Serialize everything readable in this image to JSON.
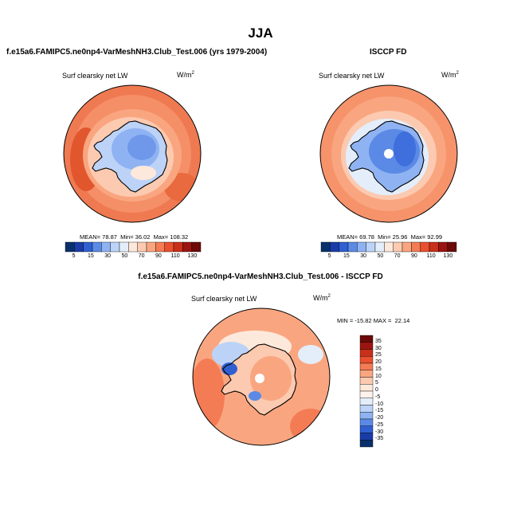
{
  "figure": {
    "title": "JJA",
    "units_prefix": "W/m",
    "units_exp": "2"
  },
  "chart_data": [
    {
      "type": "heatmap",
      "title": "f.e15a6.FAMIPC5.ne0np4-VarMeshNH3.Club_Test.006 (yrs 1979-2004)",
      "variable": "Surf clearsky net LW",
      "units": "W/m2",
      "projection": "south polar stereographic",
      "stats": {
        "mean_label": "MEAN=",
        "mean": "78.87",
        "min_label": "Min=",
        "min": "36.02",
        "max_label": "Max=",
        "max": "108.32"
      },
      "colorbar": {
        "levels": [
          "5",
          "15",
          "30",
          "50",
          "70",
          "90",
          "110",
          "130"
        ],
        "colors": [
          "#08306b",
          "#1a3ca8",
          "#2f5fd0",
          "#5b8ae6",
          "#8fb3f2",
          "#bcd3f7",
          "#e4eefb",
          "#fde9dc",
          "#fccab0",
          "#f9a680",
          "#f47c55",
          "#e9502f",
          "#c9301a",
          "#9c1410",
          "#6b0a08"
        ]
      },
      "annotation": "Ocean ~80-105 W/m2 (orange/red); Antarctic interior ~35-60 W/m2 (blue)"
    },
    {
      "type": "heatmap",
      "title": "ISCCP FD",
      "variable": "Surf clearsky net LW",
      "units": "W/m2",
      "projection": "south polar stereographic",
      "stats": {
        "mean_label": "MEAN=",
        "mean": "69.78",
        "min_label": "Min=",
        "min": "25.96",
        "max_label": "Max=",
        "max": "92.99"
      },
      "colorbar": {
        "levels": [
          "5",
          "15",
          "30",
          "50",
          "70",
          "90",
          "110",
          "130"
        ],
        "colors": [
          "#08306b",
          "#1a3ca8",
          "#2f5fd0",
          "#5b8ae6",
          "#8fb3f2",
          "#bcd3f7",
          "#e4eefb",
          "#fde9dc",
          "#fccab0",
          "#f9a680",
          "#f47c55",
          "#e9502f",
          "#c9301a",
          "#9c1410",
          "#6b0a08"
        ]
      },
      "annotation": "Ocean ~70-90 W/m2; Antarctic interior ~25-50 W/m2; missing data at pole"
    },
    {
      "type": "heatmap",
      "title": "f.e15a6.FAMIPC5.ne0np4-VarMeshNH3.Club_Test.006 - ISCCP FD",
      "variable": "Surf clearsky net LW",
      "units": "W/m2",
      "projection": "south polar stereographic",
      "stats": {
        "min_label": "MIN =",
        "min": "-15.82",
        "max_label": "MAX =",
        "max": "22.14"
      },
      "colorbar": {
        "levels": [
          "35",
          "30",
          "25",
          "20",
          "15",
          "10",
          "5",
          "0",
          "-5",
          "-10",
          "-15",
          "-20",
          "-25",
          "-30",
          "-35"
        ],
        "colors": [
          "#6b0a08",
          "#9c1410",
          "#c9301a",
          "#e9502f",
          "#f47c55",
          "#f9a680",
          "#fccab0",
          "#fde9dc",
          "#fdf3ec",
          "#e4eefb",
          "#bcd3f7",
          "#8fb3f2",
          "#5b8ae6",
          "#2f5fd0",
          "#1a3ca8",
          "#08306b"
        ]
      },
      "annotation": "Mostly positive differences (model larger) over ocean and Antarctica; small negative areas near coast"
    }
  ]
}
